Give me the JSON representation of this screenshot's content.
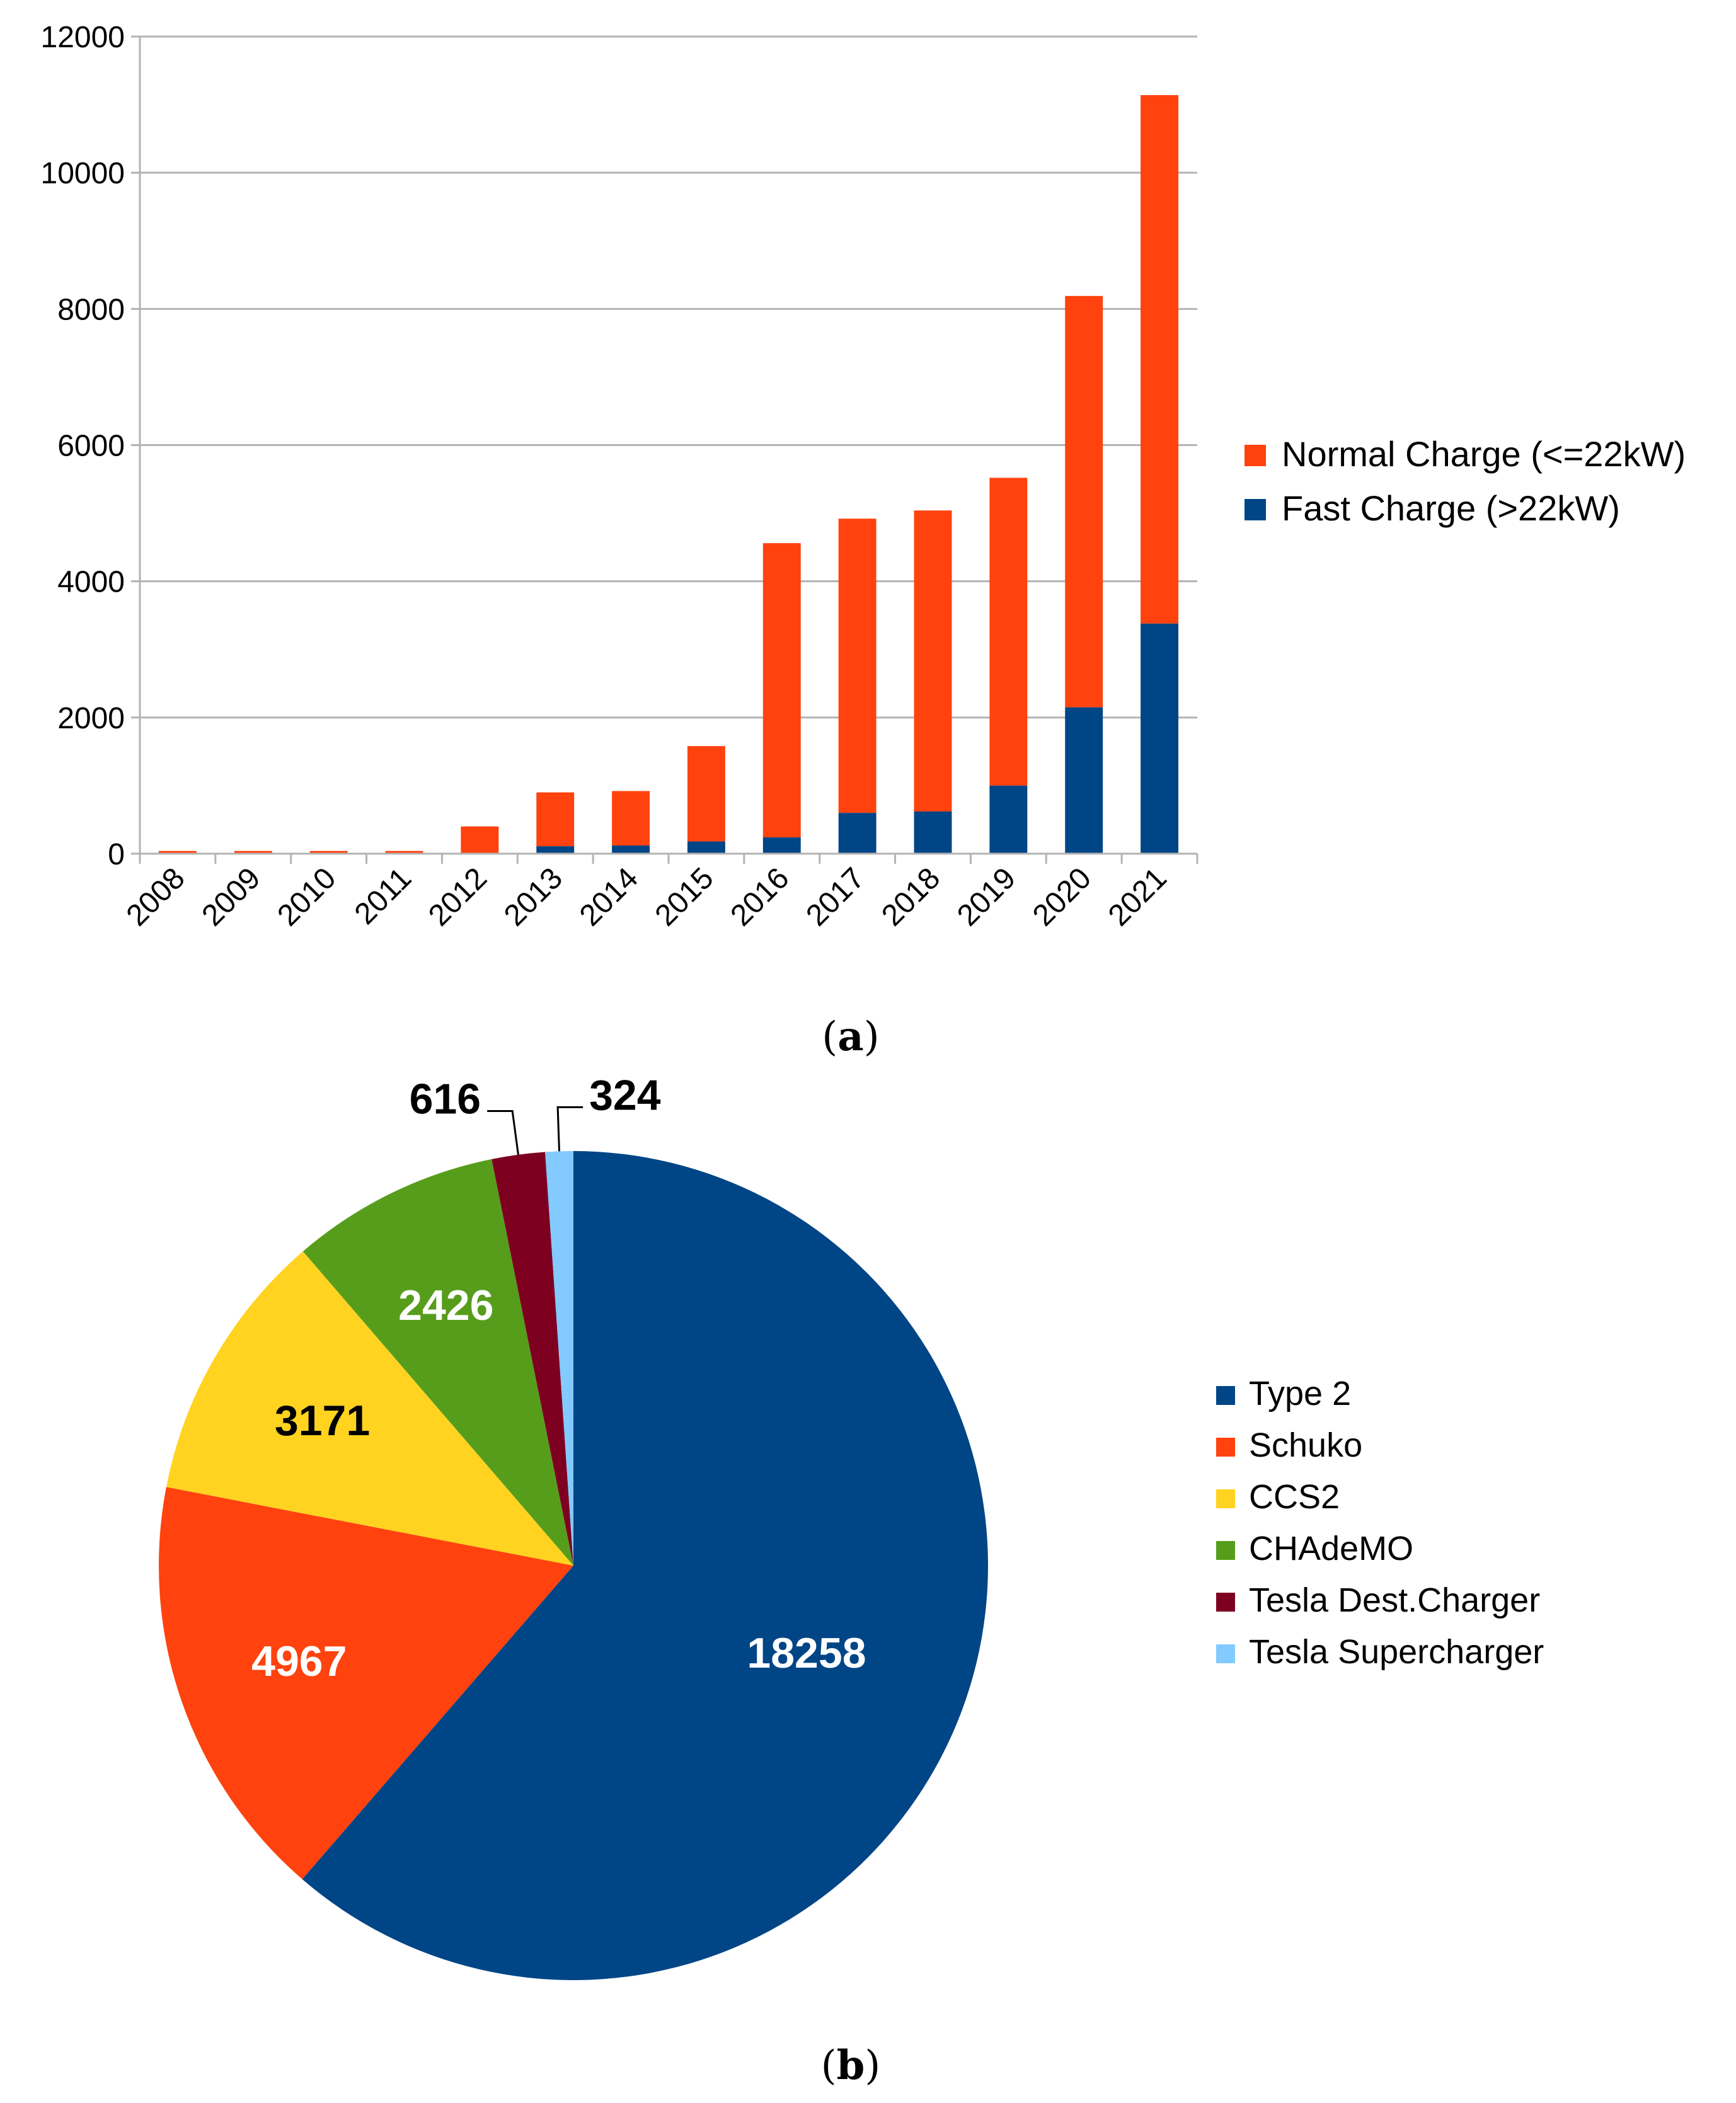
{
  "chart_data": [
    {
      "type": "bar",
      "stacked": true,
      "categories": [
        "2008",
        "2009",
        "2010",
        "2011",
        "2012",
        "2013",
        "2014",
        "2015",
        "2016",
        "2017",
        "2018",
        "2019",
        "2020",
        "2021"
      ],
      "series": [
        {
          "name": "Fast Charge (>22kW)",
          "color": "#004586",
          "values": [
            0,
            0,
            0,
            0,
            10,
            110,
            120,
            180,
            240,
            600,
            620,
            1000,
            2150,
            3380
          ]
        },
        {
          "name": "Normal Charge (<=22kW)",
          "color": "#ff420e",
          "values": [
            40,
            40,
            40,
            40,
            390,
            790,
            800,
            1400,
            4320,
            4320,
            4420,
            4520,
            6040,
            7760
          ]
        }
      ],
      "legend_order": [
        1,
        0
      ],
      "yticks": [
        "0",
        "2000",
        "4000",
        "6000",
        "8000",
        "10000",
        "12000"
      ],
      "ylim": [
        0,
        12000
      ],
      "grid": true,
      "legend": "right",
      "caption_label": "a",
      "title": "",
      "xlabel": "",
      "ylabel": ""
    },
    {
      "type": "pie",
      "slices": [
        {
          "label": "Type 2",
          "value": 18258,
          "value_text": "18258",
          "color": "#004586",
          "label_color": "#ffffff"
        },
        {
          "label": "Schuko",
          "value": 4967,
          "value_text": "4967",
          "color": "#ff420e",
          "label_color": "#ffffff"
        },
        {
          "label": "CCS2",
          "value": 3171,
          "value_text": "3171",
          "color": "#ffd320",
          "label_color": "#000000"
        },
        {
          "label": "CHAdeMO",
          "value": 2426,
          "value_text": "2426",
          "color": "#579d1c",
          "label_color": "#ffffff"
        },
        {
          "label": "Tesla  Dest.Charger",
          "value": 616,
          "value_text": "616",
          "color": "#7e0021",
          "label_color": "#000000"
        },
        {
          "label": "Tesla Supercharger",
          "value": 324,
          "value_text": "324",
          "color": "#83caff",
          "label_color": "#000000"
        }
      ],
      "legend": "right",
      "caption_label": "b",
      "title": ""
    }
  ]
}
